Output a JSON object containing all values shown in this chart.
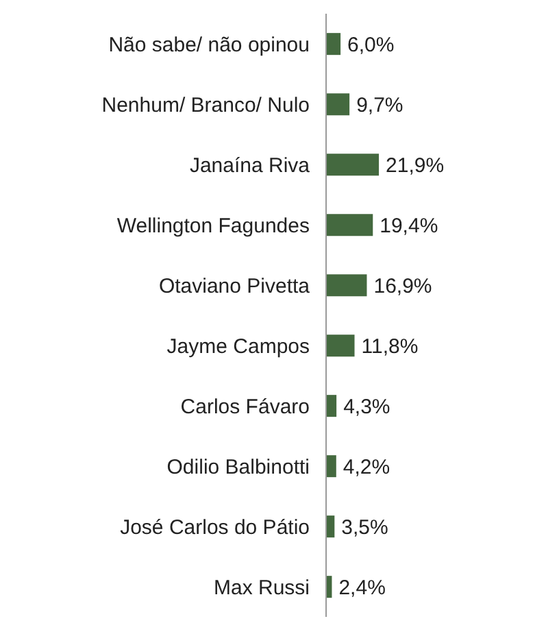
{
  "chart_data": {
    "type": "bar",
    "orientation": "horizontal",
    "categories": [
      "Não sabe/ não opinou",
      "Nenhum/ Branco/ Nulo",
      "Janaína Riva",
      "Wellington Fagundes",
      "Otaviano Pivetta",
      "Jayme Campos",
      "Carlos Fávaro",
      "Odilio Balbinotti",
      "José Carlos do Pátio",
      "Max Russi"
    ],
    "values": [
      6.0,
      9.7,
      21.9,
      19.4,
      16.9,
      11.8,
      4.3,
      4.2,
      3.5,
      2.4
    ],
    "value_labels": [
      "6,0%",
      "9,7%",
      "21,9%",
      "19,4%",
      "16,9%",
      "11,8%",
      "4,3%",
      "4,2%",
      "3,5%",
      "2,4%"
    ],
    "color": "#44693f",
    "tick_labels": "y"
  }
}
